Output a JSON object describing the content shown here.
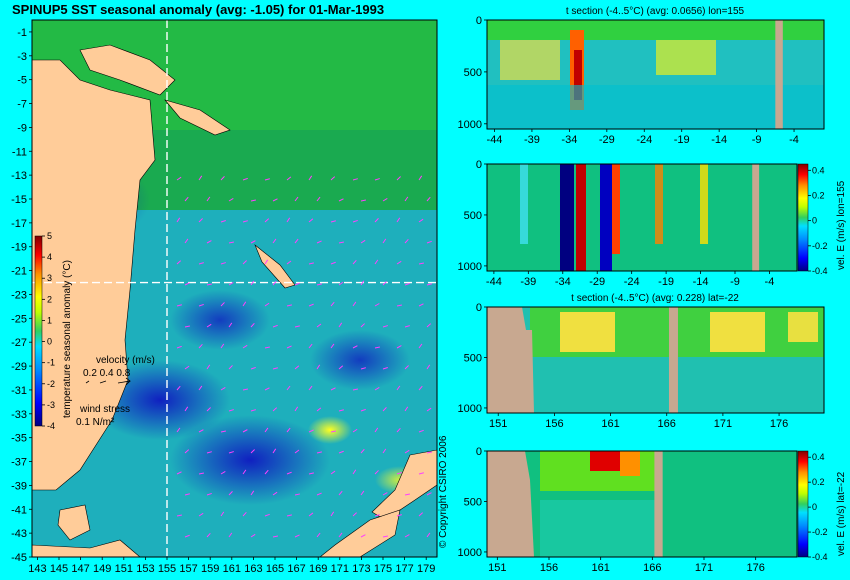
{
  "figure": {
    "main_title": "SPINUP5 SST seasonal anomaly (avg: -1.05) for 01-Mar-1993",
    "copyright": "© Copyright CSIRO 2006"
  },
  "chart_data": [
    {
      "type": "heatmap",
      "id": "map",
      "title": "SPINUP5 SST seasonal anomaly (avg: -1.05) for 01-Mar-1993",
      "x_ticks": [
        143,
        145,
        147,
        149,
        151,
        153,
        155,
        157,
        159,
        161,
        163,
        165,
        167,
        169,
        171,
        173,
        175,
        177,
        179
      ],
      "x_tick_labels": [
        "143",
        "145",
        "147",
        "149",
        "151",
        "153",
        "155",
        "157",
        "159",
        "161",
        "163",
        "165",
        "167",
        "169",
        "171",
        "173",
        "175",
        "177",
        "179"
      ],
      "xlim": [
        142.5,
        180
      ],
      "y_ticks": [
        -1,
        -3,
        -5,
        -7,
        -9,
        -11,
        -13,
        -15,
        -17,
        -19,
        -21,
        -23,
        -25,
        -27,
        -29,
        -31,
        -33,
        -35,
        -37,
        -39,
        -41,
        -43,
        -45
      ],
      "y_tick_labels": [
        "-1",
        "-3",
        "-5",
        "-7",
        "-9",
        "-11",
        "-13",
        "-15",
        "-17",
        "-19",
        "-21",
        "-23",
        "-25",
        "-27",
        "-29",
        "-31",
        "-33",
        "-35",
        "-37",
        "-39",
        "-41",
        "-43",
        "-45"
      ],
      "ylim": [
        -45,
        0
      ],
      "section_lon": 155,
      "section_lat": -22,
      "colorbar": {
        "label": "temperature seasonal anomaly (°C)",
        "ticks": [
          5,
          4,
          3,
          2,
          1,
          0,
          -1,
          -2,
          -3,
          -4
        ],
        "tick_labels": [
          "5",
          "4",
          "3",
          "2",
          "1",
          "0",
          "-1",
          "-2",
          "-3",
          "-4"
        ],
        "range": [
          -4,
          5
        ]
      },
      "velocity_legend": {
        "title": "velocity (m/s)",
        "values": "0.2 0.4 0.8"
      },
      "wind_legend": {
        "title": "wind stress",
        "value": "0.1 N/m²"
      }
    },
    {
      "type": "heatmap",
      "id": "p1",
      "title": "t section (-4..5°C) (avg: 0.0656) lon=155",
      "x_ticks": [
        -44,
        -39,
        -34,
        -29,
        -24,
        -19,
        -14,
        -9,
        -4
      ],
      "x_tick_labels": [
        "-44",
        "-39",
        "-34",
        "-29",
        "-24",
        "-19",
        "-14",
        "-9",
        "-4"
      ],
      "xlim": [
        -45,
        0
      ],
      "y_ticks": [
        0,
        500,
        1000
      ],
      "y_tick_labels": [
        "0",
        "500",
        "1000"
      ],
      "ylim": [
        1050,
        0
      ],
      "land_x": [
        -6.5,
        -5.5
      ]
    },
    {
      "type": "heatmap",
      "id": "p2",
      "title": "",
      "x_ticks": [
        -44,
        -39,
        -34,
        -29,
        -24,
        -19,
        -14,
        -9,
        -4
      ],
      "x_tick_labels": [
        "-44",
        "-39",
        "-34",
        "-29",
        "-24",
        "-19",
        "-14",
        "-9",
        "-4"
      ],
      "xlim": [
        -45,
        0
      ],
      "y_ticks": [
        0,
        500,
        1000
      ],
      "y_tick_labels": [
        "0",
        "500",
        "1000"
      ],
      "ylim": [
        1050,
        0
      ],
      "land_x": [
        -6.5,
        -5.5
      ],
      "colorbar": {
        "label": "vel. E (m/s) lon=155",
        "ticks": [
          0.4,
          0.2,
          0,
          -0.2,
          -0.4
        ],
        "tick_labels": [
          "0.4",
          "0.2",
          "0",
          "-0.2",
          "-0.4"
        ],
        "range": [
          -0.4,
          0.45
        ]
      }
    },
    {
      "type": "heatmap",
      "id": "p3",
      "title": "t section (-4..5°C) (avg: 0.228) lat=-22",
      "x_ticks": [
        151,
        156,
        161,
        166,
        171,
        176
      ],
      "x_tick_labels": [
        "151",
        "156",
        "161",
        "166",
        "171",
        "176"
      ],
      "xlim": [
        150,
        180
      ],
      "y_ticks": [
        0,
        500,
        1000
      ],
      "y_tick_labels": [
        "0",
        "500",
        "1000"
      ],
      "ylim": [
        1050,
        0
      ],
      "land_x": [
        166.2,
        167
      ]
    },
    {
      "type": "heatmap",
      "id": "p4",
      "title": "",
      "x_ticks": [
        151,
        156,
        161,
        166,
        171,
        176
      ],
      "x_tick_labels": [
        "151",
        "156",
        "161",
        "166",
        "171",
        "176"
      ],
      "xlim": [
        150,
        180
      ],
      "y_ticks": [
        0,
        500,
        1000
      ],
      "y_tick_labels": [
        "0",
        "500",
        "1000"
      ],
      "ylim": [
        1050,
        0
      ],
      "land_x": [
        166.2,
        167
      ],
      "colorbar": {
        "label": "vel. E (m/s) lat=-22",
        "ticks": [
          0.4,
          0.2,
          0,
          -0.2,
          -0.4
        ],
        "tick_labels": [
          "0.4",
          "0.2",
          "0",
          "-0.2",
          "-0.4"
        ],
        "range": [
          -0.4,
          0.45
        ]
      }
    }
  ]
}
